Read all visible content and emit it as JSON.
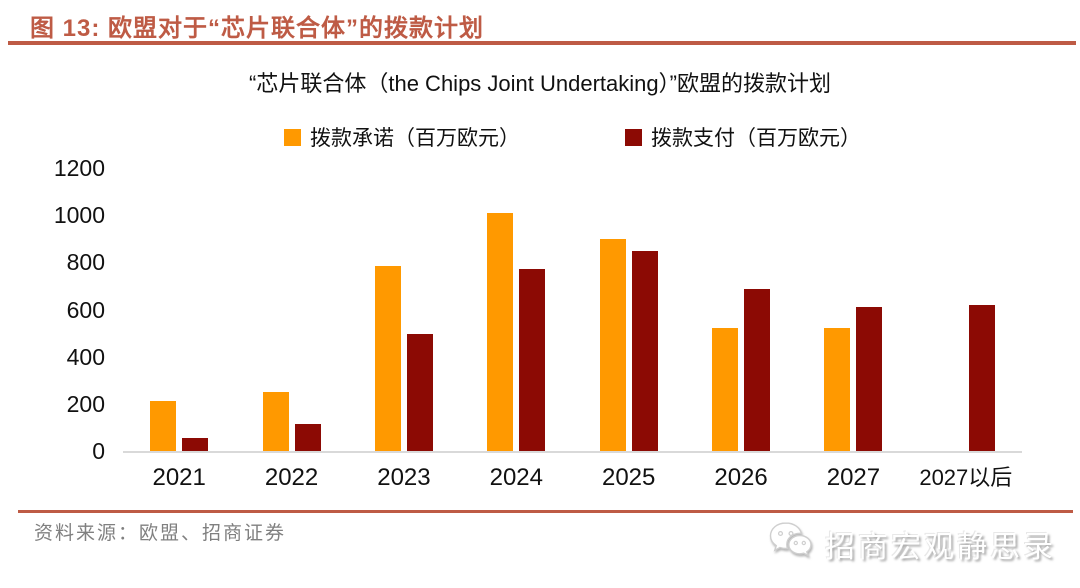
{
  "header": {
    "title": "图 13:  欧盟对于“芯片联合体”的拨款计划"
  },
  "chart_data": {
    "type": "bar",
    "title": "“芯片联合体（the Chips Joint Undertaking）”欧盟的拨款计划",
    "categories": [
      "2021",
      "2022",
      "2023",
      "2024",
      "2025",
      "2026",
      "2027",
      "2027以后"
    ],
    "series": [
      {
        "name": "拨款承诺（百万欧元）",
        "color": "#FF9900",
        "values": [
          210,
          250,
          785,
          1010,
          900,
          520,
          520,
          null
        ]
      },
      {
        "name": "拨款支付（百万欧元）",
        "color": "#8C0A04",
        "values": [
          55,
          115,
          495,
          770,
          850,
          685,
          610,
          620
        ]
      }
    ],
    "xlabel": "",
    "ylabel": "",
    "ylim": [
      0,
      1200
    ],
    "yticks": [
      0,
      200,
      400,
      600,
      800,
      1000,
      1200
    ],
    "grid": false,
    "legend_position": "top-center"
  },
  "footer": {
    "source": "资料来源：欧盟、招商证券",
    "watermark": "招商宏观静思录"
  },
  "colors": {
    "accent": "#BE5B45",
    "commitment_bar": "#FF9900",
    "payment_bar": "#8C0A04",
    "axis_line": "#D9D9D9",
    "source_text": "#808080"
  }
}
